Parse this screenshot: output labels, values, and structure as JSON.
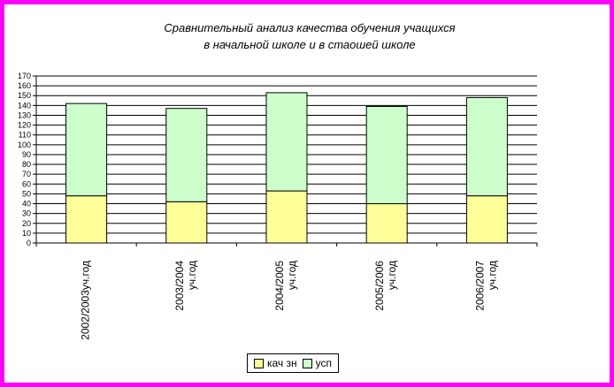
{
  "chart_data": {
    "type": "bar",
    "stacked": true,
    "title_lines": [
      "Сравнительный анализ качества обучения учащихся",
      "в начальной школе и в стаошей школе"
    ],
    "categories": [
      [
        "2002/2003уч.год"
      ],
      [
        "2003/2004",
        "уч.год"
      ],
      [
        "2004/2005",
        "уч.год"
      ],
      [
        "2005/2006",
        "уч.год"
      ],
      [
        "2006/2007",
        "уч.год"
      ]
    ],
    "series": [
      {
        "name": "кач зн",
        "color": "#ffff99",
        "values": [
          48,
          42,
          53,
          40,
          48
        ]
      },
      {
        "name": "усп",
        "color": "#ccffcc",
        "values": [
          94,
          95,
          100,
          99,
          100
        ]
      }
    ],
    "yticks": [
      0,
      10,
      20,
      30,
      40,
      50,
      60,
      70,
      80,
      90,
      100,
      110,
      120,
      130,
      140,
      150,
      160,
      170
    ],
    "ylim": [
      0,
      170
    ],
    "grid": true,
    "legend_position": "bottom"
  }
}
